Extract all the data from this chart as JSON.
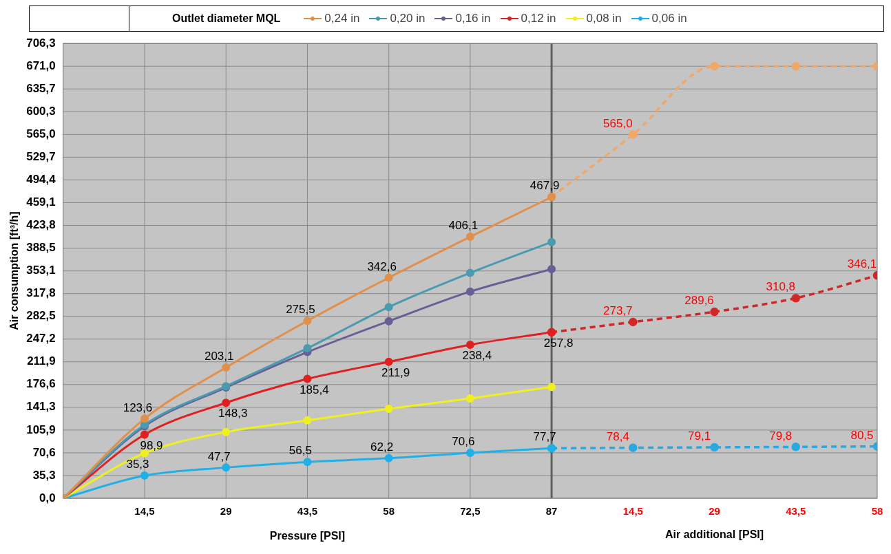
{
  "chart_data": {
    "type": "line",
    "legend_title": "Outlet diameter MQL",
    "legend": "top",
    "ylabel": "Air consumption [ft³/h]",
    "xlabel": "Pressure [PSI]",
    "x2label": "Air additional [PSI]",
    "xlim": [
      0,
      145
    ],
    "xticks": [
      {
        "value": 14.5,
        "label": "14,5"
      },
      29,
      {
        "value": 43.5,
        "label": "43,5"
      },
      58,
      {
        "value": 72.5,
        "label": "72,5"
      },
      87
    ],
    "x2lim": [
      -87,
      58
    ],
    "x2ticks": [
      {
        "value": 14.5,
        "label": "14,5"
      },
      29,
      {
        "value": 43.5,
        "label": "43,5"
      },
      58
    ],
    "ylim": [
      0,
      706.3
    ],
    "yticks": [
      {
        "value": 0,
        "label": "0,0"
      },
      {
        "value": 35.3,
        "label": "35,3"
      },
      {
        "value": 70.6,
        "label": "70,6"
      },
      {
        "value": 105.9,
        "label": "105,9"
      },
      {
        "value": 141.3,
        "label": "141,3"
      },
      {
        "value": 176.6,
        "label": "176,6"
      },
      {
        "value": 211.9,
        "label": "211,9"
      },
      {
        "value": 247.2,
        "label": "247,2"
      },
      {
        "value": 282.5,
        "label": "282,5"
      },
      {
        "value": 317.8,
        "label": "317,8"
      },
      {
        "value": 353.1,
        "label": "353,1"
      },
      {
        "value": 388.5,
        "label": "388,5"
      },
      {
        "value": 423.8,
        "label": "423,8"
      },
      {
        "value": 459.1,
        "label": "459,1"
      },
      {
        "value": 494.4,
        "label": "494,4"
      },
      {
        "value": 529.7,
        "label": "529,7"
      },
      {
        "value": 565.0,
        "label": "565,0"
      },
      {
        "value": 600.3,
        "label": "600,3"
      },
      {
        "value": 635.7,
        "label": "635,7"
      },
      {
        "value": 671.0,
        "label": "671,0"
      },
      {
        "value": 706.3,
        "label": "706,3"
      }
    ],
    "grid": true,
    "marker": "circle",
    "line_style": "solid",
    "ref_lines": [
      {
        "axis": "x",
        "value": 87,
        "color": "#606060"
      }
    ],
    "series": [
      {
        "name": "0,24 in",
        "color": "#e0904a",
        "x": [
          0,
          14.5,
          29,
          43.5,
          58,
          72.5,
          87
        ],
        "values": [
          0,
          123.6,
          203.1,
          275.5,
          342.6,
          406.1,
          467.9
        ],
        "value_labels": [
          null,
          "123,6",
          "203,1",
          "275,5",
          "342,6",
          "406,1",
          "467,9"
        ]
      },
      {
        "name": "0,20 in",
        "color": "#4a9ab0",
        "x": [
          0,
          14.5,
          29,
          43.5,
          58,
          72.5,
          87
        ],
        "values": [
          0,
          114,
          174,
          233,
          297,
          350,
          398
        ]
      },
      {
        "name": "0,16 in",
        "color": "#6a5e96",
        "x": [
          0,
          14.5,
          29,
          43.5,
          58,
          72.5,
          87
        ],
        "values": [
          0,
          112,
          172,
          227,
          275,
          321,
          356
        ]
      },
      {
        "name": "0,12 in",
        "color": "#e02020",
        "x": [
          0,
          14.5,
          29,
          43.5,
          58,
          72.5,
          87
        ],
        "values": [
          0,
          98.9,
          148.3,
          185.4,
          211.9,
          238.4,
          257.8
        ],
        "value_labels": [
          null,
          "98,9",
          "148,3",
          "185,4",
          "211,9",
          "238,4",
          "257,8"
        ]
      },
      {
        "name": "0,08 in",
        "color": "#f0f020",
        "x": [
          0,
          14.5,
          29,
          43.5,
          58,
          72.5,
          87
        ],
        "values": [
          0,
          70,
          103,
          121,
          139,
          155,
          173
        ]
      },
      {
        "name": "0,06 in",
        "color": "#20b0e8",
        "x": [
          0,
          14.5,
          29,
          43.5,
          58,
          72.5,
          87
        ],
        "values": [
          0,
          35.3,
          47.7,
          56.5,
          62.2,
          70.6,
          77.7
        ],
        "value_labels": [
          null,
          "35,3",
          "47,7",
          "56,5",
          "62,2",
          "70,6",
          "77,7"
        ]
      },
      {
        "color": "#f0a868",
        "line_style": "dashed",
        "axis": "x2",
        "x": [
          0,
          14.5,
          29,
          43.5,
          58
        ],
        "values": [
          467.9,
          565.0,
          671.0,
          671.0,
          671.0
        ],
        "value_labels": [
          null,
          "565,0",
          null,
          null,
          null
        ]
      },
      {
        "color": "#d02828",
        "line_style": "dashed",
        "axis": "x2",
        "x": [
          0,
          14.5,
          29,
          43.5,
          58
        ],
        "values": [
          257.8,
          273.7,
          289.6,
          310.8,
          346.1
        ],
        "value_labels": [
          null,
          "273,7",
          "289,6",
          "310,8",
          "346,1"
        ]
      },
      {
        "color": "#2aa8e0",
        "line_style": "dashed",
        "axis": "x2",
        "x": [
          0,
          14.5,
          29,
          43.5,
          58
        ],
        "values": [
          77.7,
          78.4,
          79.1,
          79.8,
          80.5
        ],
        "value_labels": [
          null,
          "78,4",
          "79,1",
          "79,8",
          "80,5"
        ]
      }
    ]
  }
}
